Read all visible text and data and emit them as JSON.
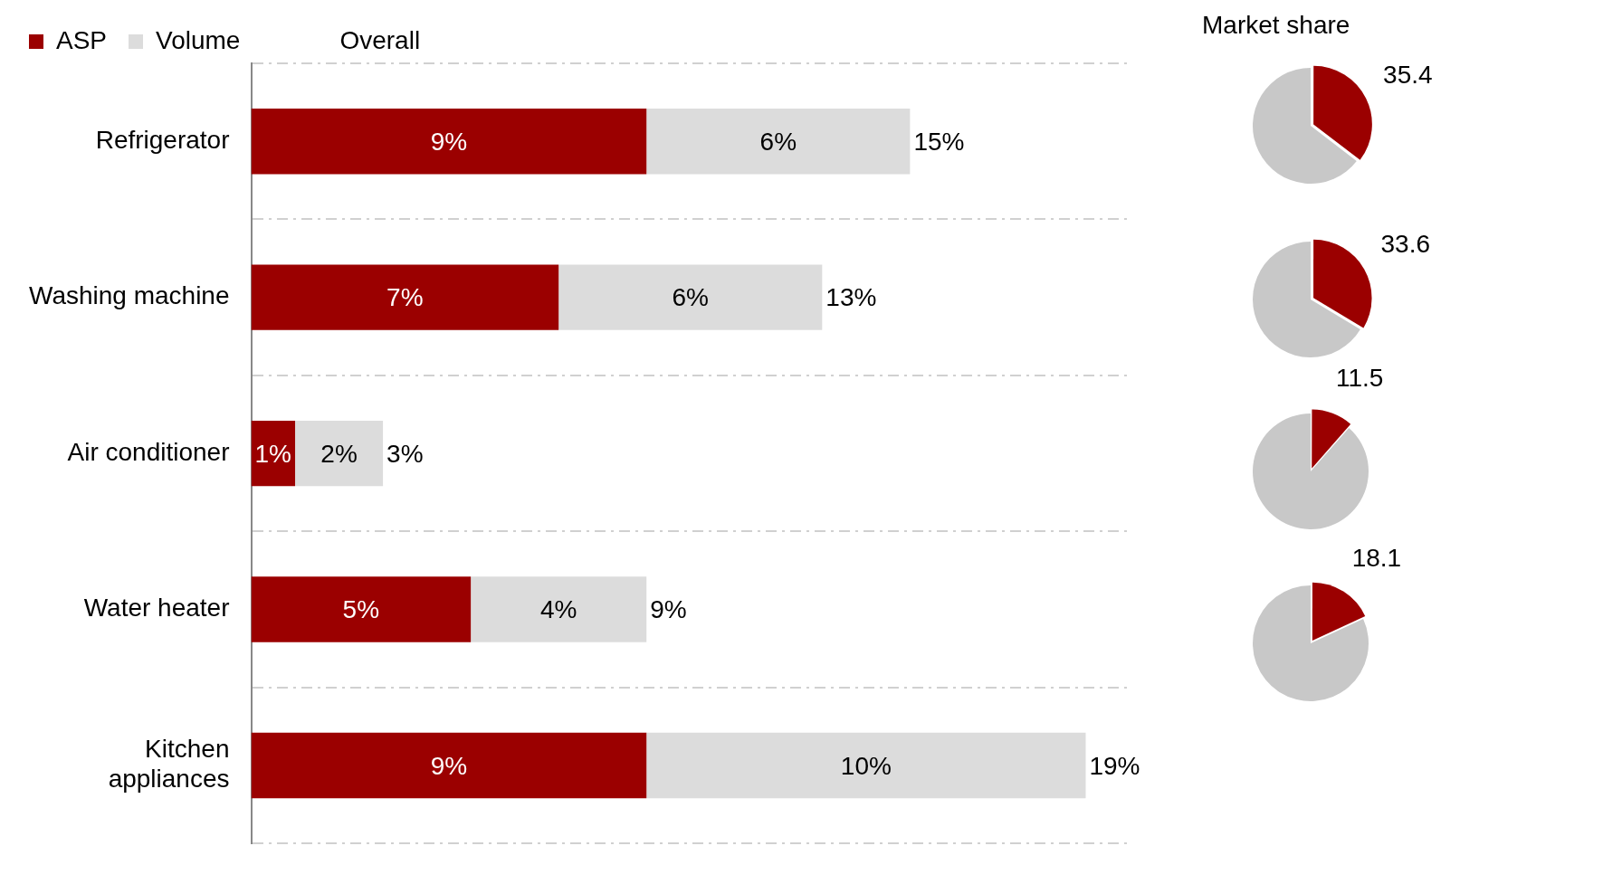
{
  "chart_data": [
    {
      "type": "bar",
      "orientation": "horizontal",
      "stacked": true,
      "categories": [
        "Refrigerator",
        "Washing machine",
        "Air conditioner",
        "Water heater",
        "Kitchen appliances"
      ],
      "series": [
        {
          "name": "ASP",
          "color": "#9b0000",
          "values": [
            9,
            7,
            1,
            5,
            9
          ],
          "value_labels": [
            "9%",
            "7%",
            "1%",
            "5%",
            "9%"
          ]
        },
        {
          "name": "Volume",
          "color": "#dcdcdc",
          "values": [
            6,
            6,
            2,
            4,
            10
          ],
          "value_labels": [
            "6%",
            "6%",
            "2%",
            "4%",
            "10%"
          ]
        }
      ],
      "totals": [
        "15%",
        "13%",
        "3%",
        "9%",
        "19%"
      ],
      "annotations": [
        "Overall"
      ],
      "legend": "top left",
      "grid": "y"
    },
    {
      "type": "pie",
      "title": "Market share",
      "categories": [
        null,
        null
      ],
      "values": [
        35.4,
        64.6
      ],
      "colors": [
        "#9b0000",
        "#c8c8c8"
      ],
      "value_labels": [
        "35.4",
        null
      ]
    },
    {
      "type": "pie",
      "categories": [
        null,
        null
      ],
      "values": [
        33.6,
        66.4
      ],
      "colors": [
        "#9b0000",
        "#c8c8c8"
      ],
      "value_labels": [
        "33.6",
        null
      ]
    },
    {
      "type": "pie",
      "categories": [
        null,
        null
      ],
      "values": [
        11.5,
        88.5
      ],
      "colors": [
        "#9b0000",
        "#c8c8c8"
      ],
      "value_labels": [
        "11.5",
        null
      ]
    },
    {
      "type": "pie",
      "categories": [
        null,
        null
      ],
      "values": [
        18.1,
        81.9
      ],
      "colors": [
        "#9b0000",
        "#c8c8c8"
      ],
      "value_labels": [
        "18.1",
        null
      ]
    }
  ]
}
